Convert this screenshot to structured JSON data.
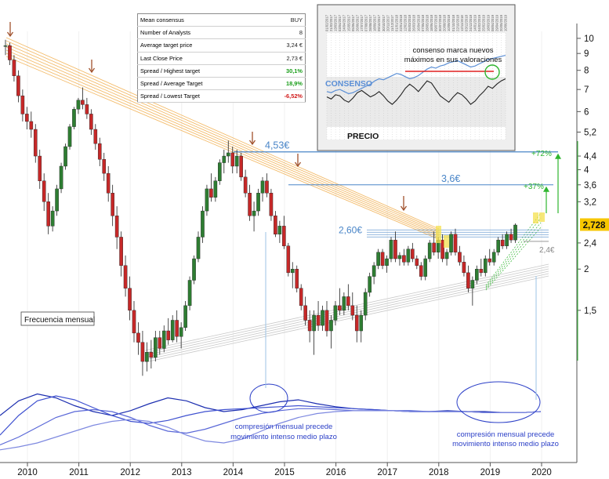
{
  "chart_data": {
    "type": "candlestick",
    "frequency_label": "Frecuencia mensual",
    "x_ticks": [
      "2010",
      "2011",
      "2012",
      "2013",
      "2014",
      "2015",
      "2016",
      "2017",
      "2018",
      "2019",
      "2020"
    ],
    "y_ticks": [
      "10",
      "9",
      "8",
      "7",
      "6",
      "5,2",
      "4,4",
      "4",
      "3,6",
      "3,2",
      "2,4",
      "2",
      "1,5"
    ],
    "y_scale": "log",
    "ylim": [
      1.0,
      10.5
    ],
    "last_price_label": "2,728",
    "last_price": 2.728,
    "colors": {
      "up": "#2e7d32",
      "down": "#c62828",
      "fib": "#f2b45a",
      "levels": "#4a86c8",
      "green": "#2fb52f",
      "osc": "#2b3fc7"
    },
    "candles": [
      [
        9.5,
        9.9,
        8.9,
        9.5
      ],
      [
        9.5,
        9.7,
        8.3,
        8.6
      ],
      [
        8.6,
        8.9,
        7.4,
        7.7
      ],
      [
        7.7,
        8.0,
        6.4,
        6.7
      ],
      [
        6.7,
        7.0,
        5.6,
        5.9
      ],
      [
        5.9,
        6.2,
        5.3,
        5.6
      ],
      [
        5.6,
        6.0,
        5.0,
        5.3
      ],
      [
        5.3,
        5.5,
        4.2,
        4.4
      ],
      [
        4.4,
        4.6,
        3.5,
        3.7
      ],
      [
        3.7,
        3.9,
        3.0,
        3.2
      ],
      [
        3.2,
        3.4,
        2.55,
        2.7
      ],
      [
        2.7,
        3.1,
        2.6,
        3.0
      ],
      [
        3.0,
        3.6,
        2.9,
        3.5
      ],
      [
        3.5,
        4.2,
        3.4,
        4.1
      ],
      [
        4.1,
        4.8,
        4.0,
        4.7
      ],
      [
        4.7,
        5.5,
        4.6,
        5.4
      ],
      [
        5.4,
        6.2,
        5.3,
        6.1
      ],
      [
        6.1,
        6.6,
        5.9,
        6.5
      ],
      [
        6.5,
        7.1,
        6.1,
        6.3
      ],
      [
        6.3,
        6.6,
        5.7,
        5.9
      ],
      [
        5.9,
        6.1,
        5.1,
        5.3
      ],
      [
        5.3,
        5.5,
        4.6,
        4.8
      ],
      [
        4.8,
        5.0,
        4.1,
        4.3
      ],
      [
        4.3,
        4.5,
        3.7,
        3.9
      ],
      [
        3.9,
        4.1,
        3.2,
        3.4
      ],
      [
        3.4,
        3.6,
        2.7,
        2.9
      ],
      [
        2.9,
        3.1,
        2.3,
        2.5
      ],
      [
        2.5,
        2.6,
        1.9,
        2.05
      ],
      [
        2.05,
        2.2,
        1.65,
        1.75
      ],
      [
        1.75,
        1.9,
        1.4,
        1.5
      ],
      [
        1.5,
        1.6,
        1.2,
        1.28
      ],
      [
        1.28,
        1.38,
        1.1,
        1.2
      ],
      [
        1.2,
        1.3,
        0.95,
        1.05
      ],
      [
        1.05,
        1.2,
        0.98,
        1.12
      ],
      [
        1.12,
        1.22,
        1.0,
        1.08
      ],
      [
        1.08,
        1.3,
        1.05,
        1.24
      ],
      [
        1.24,
        1.3,
        1.1,
        1.15
      ],
      [
        1.15,
        1.35,
        1.12,
        1.3
      ],
      [
        1.3,
        1.42,
        1.18,
        1.22
      ],
      [
        1.22,
        1.45,
        1.2,
        1.4
      ],
      [
        1.4,
        1.5,
        1.2,
        1.25
      ],
      [
        1.25,
        1.38,
        1.15,
        1.33
      ],
      [
        1.33,
        1.6,
        1.3,
        1.55
      ],
      [
        1.55,
        1.9,
        1.5,
        1.85
      ],
      [
        1.85,
        2.2,
        1.8,
        2.15
      ],
      [
        2.15,
        2.6,
        2.1,
        2.5
      ],
      [
        2.5,
        3.1,
        2.4,
        3.0
      ],
      [
        3.0,
        3.6,
        2.9,
        3.5
      ],
      [
        3.5,
        3.9,
        3.2,
        3.3
      ],
      [
        3.3,
        3.8,
        3.2,
        3.7
      ],
      [
        3.7,
        4.3,
        3.6,
        4.2
      ],
      [
        4.2,
        4.6,
        3.9,
        4.4
      ],
      [
        4.4,
        4.9,
        4.2,
        4.5
      ],
      [
        4.5,
        4.7,
        3.9,
        4.1
      ],
      [
        4.1,
        4.6,
        3.9,
        4.4
      ],
      [
        4.4,
        4.5,
        3.7,
        3.8
      ],
      [
        3.8,
        4.0,
        3.3,
        3.4
      ],
      [
        3.4,
        3.6,
        2.8,
        2.9
      ],
      [
        2.9,
        3.2,
        2.6,
        3.0
      ],
      [
        3.0,
        3.5,
        2.9,
        3.4
      ],
      [
        3.4,
        3.8,
        3.2,
        3.7
      ],
      [
        3.7,
        3.9,
        3.3,
        3.4
      ],
      [
        3.4,
        3.5,
        2.8,
        2.9
      ],
      [
        2.9,
        3.0,
        2.5,
        2.55
      ],
      [
        2.55,
        2.8,
        2.4,
        2.7
      ],
      [
        2.7,
        2.9,
        2.3,
        2.35
      ],
      [
        2.35,
        2.4,
        1.9,
        1.95
      ],
      [
        1.95,
        2.1,
        1.75,
        2.0
      ],
      [
        2.0,
        2.05,
        1.7,
        1.75
      ],
      [
        1.75,
        1.8,
        1.5,
        1.55
      ],
      [
        1.55,
        1.65,
        1.35,
        1.4
      ],
      [
        1.4,
        1.5,
        1.2,
        1.3
      ],
      [
        1.3,
        1.5,
        1.1,
        1.45
      ],
      [
        1.45,
        1.6,
        1.3,
        1.35
      ],
      [
        1.35,
        1.55,
        1.3,
        1.5
      ],
      [
        1.5,
        1.6,
        1.25,
        1.3
      ],
      [
        1.3,
        1.45,
        1.15,
        1.4
      ],
      [
        1.4,
        1.6,
        1.35,
        1.55
      ],
      [
        1.55,
        1.75,
        1.45,
        1.5
      ],
      [
        1.5,
        1.7,
        1.45,
        1.65
      ],
      [
        1.65,
        1.8,
        1.5,
        1.55
      ],
      [
        1.55,
        1.7,
        1.4,
        1.45
      ],
      [
        1.45,
        1.55,
        1.2,
        1.3
      ],
      [
        1.3,
        1.5,
        1.2,
        1.45
      ],
      [
        1.45,
        1.75,
        1.4,
        1.7
      ],
      [
        1.7,
        1.95,
        1.65,
        1.9
      ],
      [
        1.9,
        2.1,
        1.8,
        2.05
      ],
      [
        2.05,
        2.3,
        2.0,
        2.25
      ],
      [
        2.25,
        2.3,
        2.0,
        2.05
      ],
      [
        2.05,
        2.2,
        1.95,
        2.15
      ],
      [
        2.15,
        2.5,
        2.1,
        2.45
      ],
      [
        2.45,
        2.6,
        2.1,
        2.15
      ],
      [
        2.15,
        2.25,
        2.05,
        2.2
      ],
      [
        2.2,
        2.3,
        2.05,
        2.1
      ],
      [
        2.1,
        2.35,
        2.05,
        2.3
      ],
      [
        2.3,
        2.4,
        2.1,
        2.15
      ],
      [
        2.15,
        2.2,
        2.0,
        2.05
      ],
      [
        2.05,
        2.1,
        1.85,
        1.9
      ],
      [
        1.9,
        2.2,
        1.85,
        2.15
      ],
      [
        2.15,
        2.45,
        2.1,
        2.4
      ],
      [
        2.4,
        2.6,
        2.2,
        2.25
      ],
      [
        2.25,
        2.5,
        2.15,
        2.45
      ],
      [
        2.45,
        2.55,
        2.1,
        2.15
      ],
      [
        2.15,
        2.3,
        2.05,
        2.25
      ],
      [
        2.25,
        2.6,
        2.2,
        2.55
      ],
      [
        2.55,
        2.65,
        2.2,
        2.25
      ],
      [
        2.25,
        2.35,
        2.05,
        2.1
      ],
      [
        2.1,
        2.2,
        1.9,
        1.95
      ],
      [
        1.95,
        2.05,
        1.7,
        1.75
      ],
      [
        1.75,
        1.9,
        1.55,
        1.85
      ],
      [
        1.85,
        2.05,
        1.8,
        2.0
      ],
      [
        2.0,
        2.15,
        1.9,
        1.95
      ],
      [
        1.95,
        2.2,
        1.9,
        2.15
      ],
      [
        2.15,
        2.3,
        2.05,
        2.1
      ],
      [
        2.1,
        2.3,
        2.05,
        2.25
      ],
      [
        2.25,
        2.5,
        2.2,
        2.45
      ],
      [
        2.45,
        2.55,
        2.3,
        2.35
      ],
      [
        2.35,
        2.6,
        2.3,
        2.55
      ],
      [
        2.55,
        2.65,
        2.4,
        2.45
      ],
      [
        2.45,
        2.75,
        2.4,
        2.72
      ]
    ],
    "levels": [
      {
        "label": "4,53€",
        "value": 4.53
      },
      {
        "label": "3,6€",
        "value": 3.6
      },
      {
        "label": "2,60€",
        "value": 2.6
      },
      {
        "label": "2,4€",
        "value": 2.4
      }
    ],
    "annotations": {
      "pct_72": "+72%",
      "pct_37": "+37%",
      "compression_1": [
        "compresión mensual precede",
        "movimiento intenso medio plazo"
      ],
      "compression_2": [
        "compresión mensual precede",
        "movimiento intenso medio plazo"
      ]
    },
    "consensus_table": [
      {
        "label": "Mean consensus",
        "value": "BUY",
        "color": "#222222"
      },
      {
        "label": "Number of Analysts",
        "value": "8",
        "color": "#222222"
      },
      {
        "label": "Average target price",
        "value": "3,24 €",
        "color": "#222222"
      },
      {
        "label": "Last Close Price",
        "value": "2,73 €",
        "color": "#222222"
      },
      {
        "label": "Spread / Highest target",
        "value": "30,1%",
        "color": "#1a9e1a"
      },
      {
        "label": "Spread / Average Target",
        "value": "18,9%",
        "color": "#1a9e1a"
      },
      {
        "label": "Spread / Lowest Target",
        "value": "-6,52%",
        "color": "#d11a1a"
      }
    ],
    "inset": {
      "dates": [
        "01/02/2017",
        "21/02/2017",
        "13/03/2017",
        "03/04/2017",
        "24/04/2017",
        "15/05/2017",
        "05/06/2017",
        "26/06/2017",
        "17/07/2017",
        "07/08/2017",
        "28/08/2017",
        "18/09/2017",
        "09/10/2017",
        "30/10/2017",
        "20/11/2017",
        "11/12/2017",
        "01/01/2018",
        "22/01/2018",
        "12/02/2018",
        "05/03/2018",
        "26/03/2018",
        "16/04/2018",
        "07/05/2018",
        "28/05/2018",
        "18/06/2018",
        "09/07/2018",
        "30/07/2018",
        "20/08/2018",
        "10/09/2018",
        "01/10/2018",
        "22/10/2018",
        "12/11/2018",
        "03/12/2018",
        "24/12/2018",
        "14/01/2019",
        "04/02/2019",
        "25/02/2019",
        "18/03/2019",
        "08/04/2019",
        "29/04/2019",
        "20/05/2019",
        "10/06/2019"
      ],
      "consenso_label": "CONSENSO",
      "precio_label": "PRECIO",
      "note": [
        "consenso marca nuevos",
        "máximos en sus valoraciones"
      ],
      "consenso": [
        45,
        44,
        46,
        47,
        45,
        43,
        44,
        46,
        48,
        50,
        52,
        55,
        57,
        56,
        58,
        60,
        62,
        61,
        59,
        57,
        58,
        60,
        63,
        66,
        68,
        67,
        69,
        70,
        72,
        73,
        74,
        72,
        70,
        68,
        69,
        71,
        73,
        75,
        76,
        77,
        78,
        79
      ],
      "precio": [
        40,
        38,
        42,
        41,
        37,
        35,
        39,
        44,
        46,
        43,
        40,
        42,
        45,
        41,
        36,
        33,
        37,
        42,
        48,
        52,
        49,
        45,
        50,
        55,
        53,
        47,
        41,
        38,
        35,
        40,
        44,
        42,
        38,
        33,
        36,
        41,
        45,
        50,
        48,
        52,
        55,
        57
      ]
    },
    "oscillator": {
      "series": [
        {
          "name": "",
          "values": [
            40,
            55,
            62,
            58,
            50,
            44,
            40,
            45,
            52,
            58,
            55,
            48,
            44,
            46,
            50,
            54,
            56,
            52,
            49,
            47,
            46,
            45,
            44,
            44,
            45,
            44,
            44,
            43,
            43,
            44
          ]
        },
        {
          "name": "",
          "values": [
            20,
            40,
            55,
            60,
            56,
            48,
            40,
            34,
            32,
            35,
            40,
            44,
            46,
            47,
            48,
            49,
            50,
            49,
            48,
            47,
            46,
            45,
            45,
            44,
            44,
            44,
            43,
            43,
            43,
            44
          ]
        },
        {
          "name": "",
          "values": [
            10,
            18,
            28,
            38,
            44,
            46,
            44,
            38,
            30,
            24,
            22,
            26,
            32,
            38,
            42,
            45,
            47,
            47,
            46,
            45,
            45,
            45,
            44,
            44,
            44,
            44,
            43,
            43,
            43,
            44
          ]
        },
        {
          "name": "",
          "values": [
            5,
            8,
            12,
            18,
            24,
            30,
            34,
            36,
            34,
            28,
            20,
            14,
            12,
            16,
            24,
            32,
            38,
            42,
            44,
            45,
            45,
            45,
            44,
            44,
            44,
            44,
            43,
            43,
            43,
            44
          ]
        }
      ]
    }
  }
}
